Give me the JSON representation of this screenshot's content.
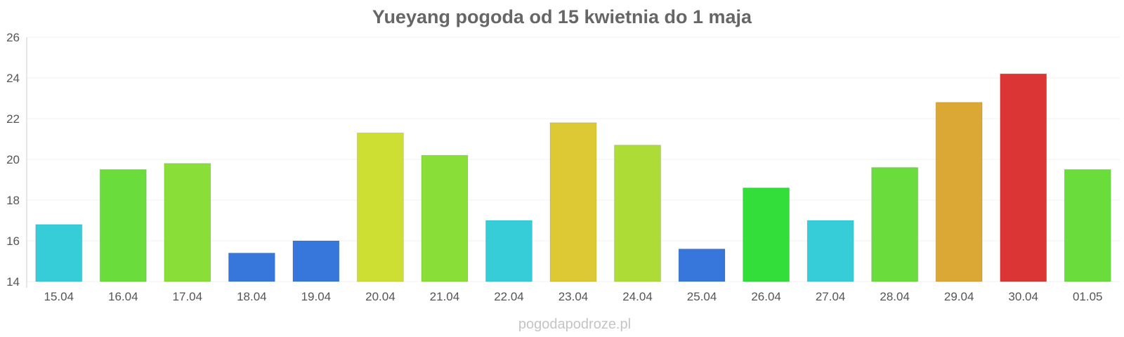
{
  "chart_data": {
    "type": "bar",
    "title": "Yueyang pogoda od 15 kwietnia do 1 maja",
    "xlabel": "",
    "ylabel": "",
    "ylim": [
      14,
      26
    ],
    "yticks": [
      14,
      16,
      18,
      20,
      22,
      24,
      26
    ],
    "grid": true,
    "legend": "none",
    "categories": [
      "15.04",
      "16.04",
      "17.04",
      "18.04",
      "19.04",
      "20.04",
      "21.04",
      "22.04",
      "23.04",
      "24.04",
      "25.04",
      "26.04",
      "27.04",
      "28.04",
      "29.04",
      "30.04",
      "01.05"
    ],
    "values": [
      16.8,
      19.5,
      19.8,
      15.4,
      16.0,
      21.3,
      20.2,
      17.0,
      21.8,
      20.7,
      15.6,
      18.6,
      17.0,
      19.6,
      22.8,
      24.2,
      19.5
    ],
    "colors": [
      "#36cdd9",
      "#6add3c",
      "#8ade38",
      "#3777dc",
      "#3777dc",
      "#cedf33",
      "#8ade38",
      "#36cdd9",
      "#dcc934",
      "#addc36",
      "#3777dc",
      "#33de3a",
      "#36cdd9",
      "#6add3c",
      "#dba735",
      "#dc3536",
      "#6add3c"
    ]
  },
  "watermark": "pogodapodroze.pl"
}
